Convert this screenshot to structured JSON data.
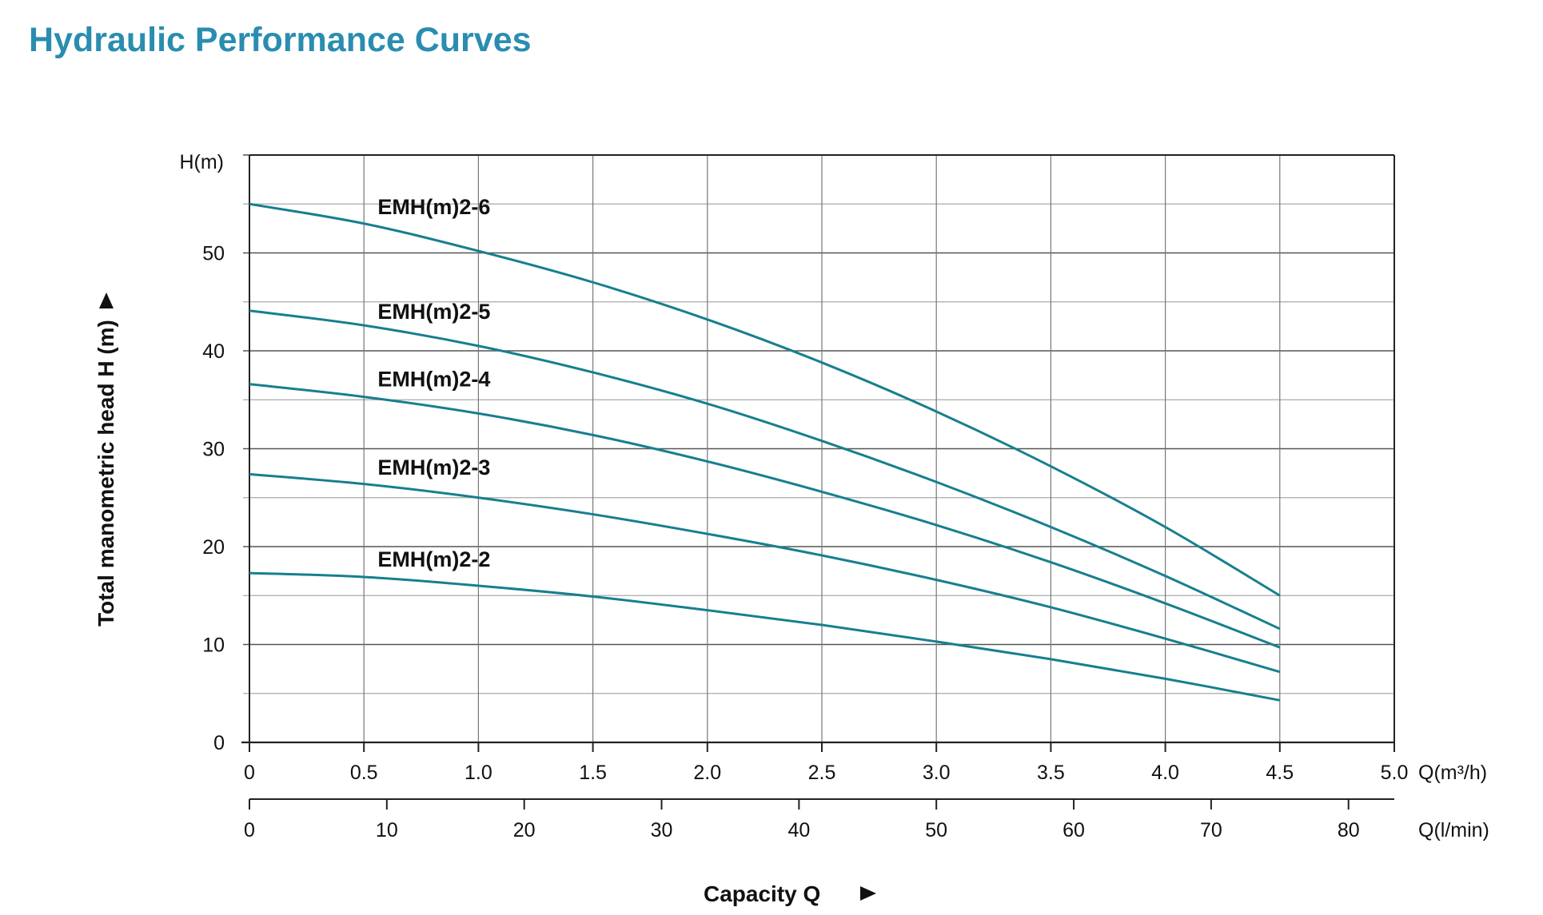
{
  "title": "Hydraulic Performance Curves",
  "colors": {
    "title": "#2a8db0",
    "curve": "#177f8f",
    "grid_major": "#555555",
    "grid_minor": "#aaaaaa"
  },
  "chart_data": {
    "type": "line",
    "title": "Hydraulic Performance Curves",
    "xlabel": "Capacity Q",
    "ylabel": "Total manometric head H (m)",
    "x_unit_label": "Q(m³/h)",
    "x2_unit_label": "Q(l/min)",
    "y_unit_label": "H(m)",
    "xlim": [
      0,
      5.0
    ],
    "ylim": [
      0,
      60
    ],
    "x_ticks": [
      "0",
      "0.5",
      "1.0",
      "1.5",
      "2.0",
      "2.5",
      "3.0",
      "3.5",
      "4.0",
      "4.5",
      "5.0"
    ],
    "x2_ticks": [
      0,
      10,
      20,
      30,
      40,
      50,
      60,
      70,
      80
    ],
    "y_ticks": [
      0,
      10,
      20,
      30,
      40,
      50
    ],
    "grid": true,
    "x": [
      0,
      0.5,
      1.0,
      1.5,
      2.0,
      2.5,
      3.0,
      3.5,
      4.0,
      4.5
    ],
    "series": [
      {
        "name": "EMH(m)2-6",
        "values": [
          55,
          53,
          50.2,
          47,
          43.2,
          38.8,
          33.8,
          28.2,
          22,
          15
        ],
        "label_at": [
          0.56,
          54.7
        ]
      },
      {
        "name": "EMH(m)2-5",
        "values": [
          44.1,
          42.6,
          40.5,
          37.8,
          34.6,
          30.8,
          26.6,
          22,
          17,
          11.6
        ],
        "label_at": [
          0.56,
          44
        ]
      },
      {
        "name": "EMH(m)2-4",
        "values": [
          36.6,
          35.3,
          33.6,
          31.4,
          28.7,
          25.6,
          22.2,
          18.4,
          14.2,
          9.7
        ],
        "label_at": [
          0.56,
          37.1
        ]
      },
      {
        "name": "EMH(m)2-3",
        "values": [
          27.4,
          26.4,
          25,
          23.3,
          21.3,
          19.1,
          16.6,
          13.8,
          10.6,
          7.2
        ],
        "label_at": [
          0.56,
          28.1
        ]
      },
      {
        "name": "EMH(m)2-2",
        "values": [
          17.3,
          16.9,
          16,
          14.9,
          13.5,
          12,
          10.3,
          8.5,
          6.5,
          4.3
        ],
        "label_at": [
          0.56,
          18.7
        ]
      }
    ]
  }
}
